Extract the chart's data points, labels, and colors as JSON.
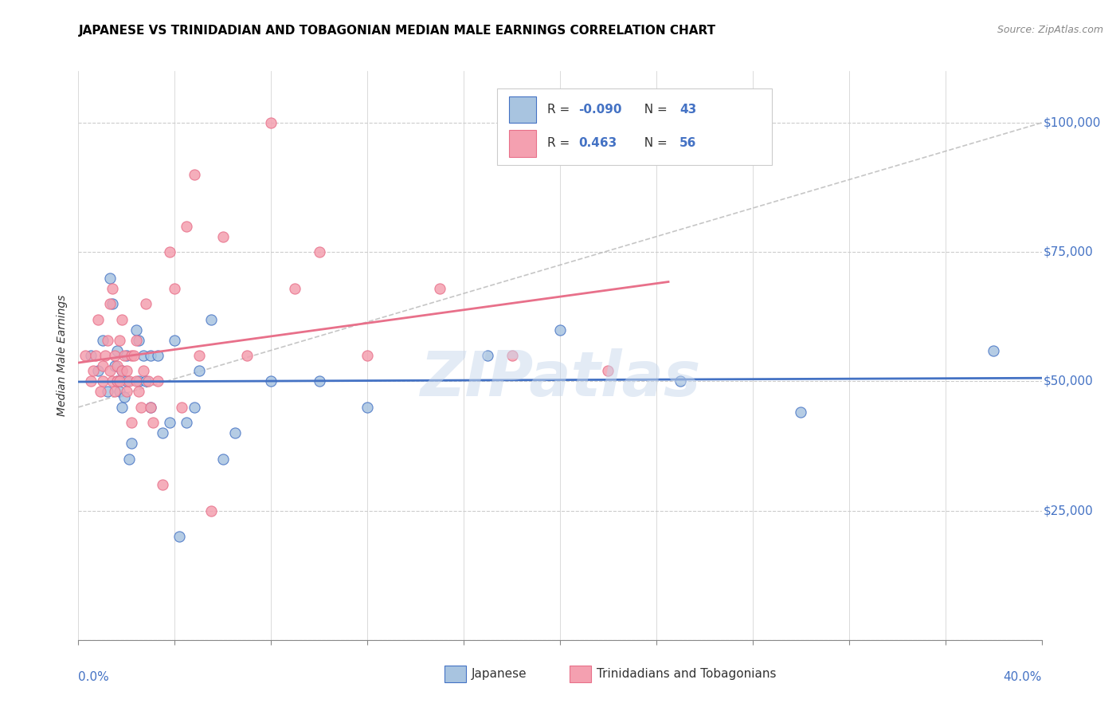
{
  "title": "JAPANESE VS TRINIDADIAN AND TOBAGONIAN MEDIAN MALE EARNINGS CORRELATION CHART",
  "source": "Source: ZipAtlas.com",
  "ylabel": "Median Male Earnings",
  "xlim": [
    0.0,
    0.4
  ],
  "ylim": [
    0,
    110000
  ],
  "watermark": "ZIPatlas",
  "legend_r_japanese": "-0.090",
  "legend_n_japanese": "43",
  "legend_r_trini": "0.463",
  "legend_n_trini": "56",
  "japanese_color": "#a8c4e0",
  "trini_color": "#f4a0b0",
  "japanese_line_color": "#4472c4",
  "trini_line_color": "#e8708a",
  "ref_line_color": "#b8b8b8",
  "ytick_vals": [
    0,
    25000,
    50000,
    75000,
    100000
  ],
  "ytick_labels": [
    "",
    "$25,000",
    "$50,000",
    "$75,000",
    "$100,000"
  ],
  "xtick_labels": [
    "0.0%",
    "",
    "",
    "",
    "",
    "",
    "",
    "",
    "",
    "",
    "40.0%"
  ],
  "japanese_scatter_x": [
    0.005,
    0.008,
    0.01,
    0.012,
    0.013,
    0.014,
    0.015,
    0.016,
    0.016,
    0.017,
    0.018,
    0.018,
    0.019,
    0.02,
    0.02,
    0.021,
    0.022,
    0.024,
    0.025,
    0.025,
    0.027,
    0.028,
    0.03,
    0.03,
    0.033,
    0.035,
    0.038,
    0.04,
    0.042,
    0.045,
    0.048,
    0.05,
    0.055,
    0.06,
    0.065,
    0.08,
    0.1,
    0.12,
    0.2,
    0.3,
    0.17,
    0.25,
    0.38
  ],
  "japanese_scatter_y": [
    55000,
    52000,
    58000,
    48000,
    70000,
    65000,
    53000,
    50000,
    56000,
    48000,
    52000,
    45000,
    47000,
    55000,
    50000,
    35000,
    38000,
    60000,
    58000,
    50000,
    55000,
    50000,
    45000,
    55000,
    55000,
    40000,
    42000,
    58000,
    20000,
    42000,
    45000,
    52000,
    62000,
    35000,
    40000,
    50000,
    50000,
    45000,
    60000,
    44000,
    55000,
    50000,
    56000
  ],
  "trini_scatter_x": [
    0.003,
    0.005,
    0.006,
    0.007,
    0.008,
    0.009,
    0.01,
    0.01,
    0.011,
    0.012,
    0.013,
    0.013,
    0.014,
    0.014,
    0.015,
    0.015,
    0.016,
    0.016,
    0.017,
    0.017,
    0.018,
    0.018,
    0.019,
    0.02,
    0.02,
    0.021,
    0.022,
    0.022,
    0.023,
    0.024,
    0.024,
    0.025,
    0.026,
    0.027,
    0.028,
    0.029,
    0.03,
    0.031,
    0.033,
    0.035,
    0.038,
    0.04,
    0.043,
    0.045,
    0.048,
    0.05,
    0.055,
    0.06,
    0.07,
    0.08,
    0.09,
    0.1,
    0.12,
    0.15,
    0.18,
    0.22
  ],
  "trini_scatter_y": [
    55000,
    50000,
    52000,
    55000,
    62000,
    48000,
    50000,
    53000,
    55000,
    58000,
    52000,
    65000,
    68000,
    50000,
    48000,
    55000,
    50000,
    53000,
    58000,
    50000,
    52000,
    62000,
    55000,
    52000,
    48000,
    50000,
    42000,
    55000,
    55000,
    50000,
    58000,
    48000,
    45000,
    52000,
    65000,
    50000,
    45000,
    42000,
    50000,
    30000,
    75000,
    68000,
    45000,
    80000,
    90000,
    55000,
    25000,
    78000,
    55000,
    100000,
    68000,
    75000,
    55000,
    68000,
    55000,
    52000
  ]
}
